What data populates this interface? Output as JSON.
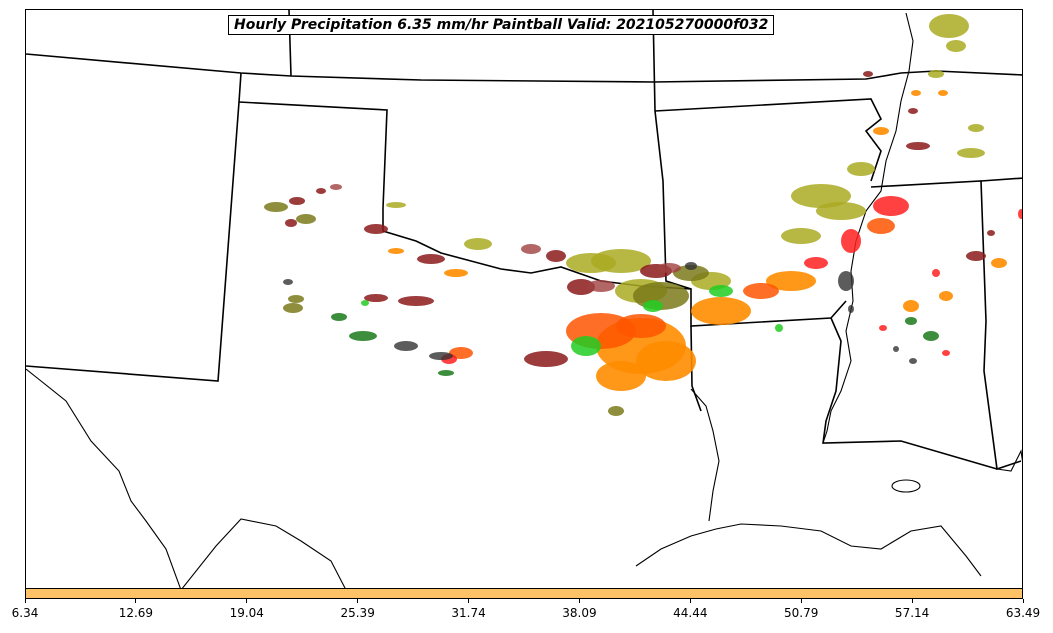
{
  "title": "Hourly Precipitation 6.35 mm/hr Paintball Valid: 202105270000f032",
  "colorbar": {
    "color": "#ffc266",
    "ticks": [
      "6.34",
      "12.69",
      "19.04",
      "25.39",
      "31.74",
      "38.09",
      "44.44",
      "50.79",
      "57.14",
      "63.49"
    ]
  },
  "colors": {
    "olive_light": "#aaaa22",
    "olive_dark": "#7a7a1a",
    "maroon": "#8b1a1a",
    "maroon_light": "#a04040",
    "orange": "#ff8c00",
    "orange_red": "#ff5500",
    "red": "#ff2020",
    "green": "#22cc22",
    "dark_green": "#1a7a1a",
    "gray": "#333333"
  }
}
